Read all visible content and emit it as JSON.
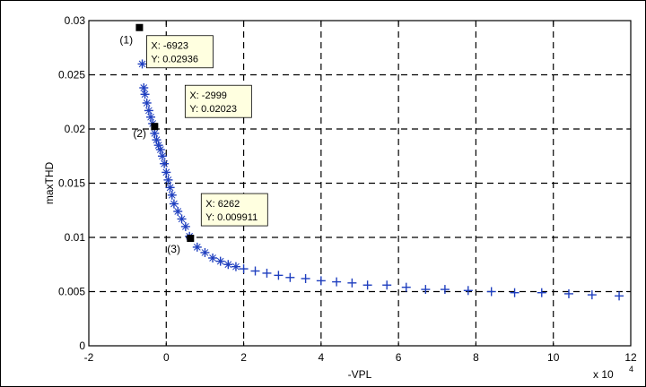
{
  "chart_data": {
    "type": "scatter",
    "title": "",
    "xlabel": "-VPL",
    "ylabel": "maxTHD",
    "x_multiplier_label": "x 10",
    "x_multiplier_exponent": "4",
    "xlim": [
      -2,
      12
    ],
    "ylim": [
      0,
      0.03
    ],
    "xticks": [
      "-2",
      "0",
      "2",
      "4",
      "6",
      "8",
      "10",
      "12"
    ],
    "yticks": [
      "0",
      "0.005",
      "0.01",
      "0.015",
      "0.02",
      "0.025",
      "0.03"
    ],
    "grid": true,
    "marker_color": "#1f3fbf",
    "series": [
      {
        "x": [
          -0.62,
          -0.58,
          -0.55,
          -0.5,
          -0.45,
          -0.4,
          -0.35,
          -0.3,
          -0.25,
          -0.2,
          -0.15,
          -0.1,
          -0.05,
          0,
          0.05,
          0.1,
          0.15,
          0.2,
          0.3,
          0.4,
          0.5,
          0.6,
          0.8,
          1.0,
          1.2,
          1.4,
          1.6,
          1.8,
          2.0,
          2.3,
          2.6,
          2.9,
          3.2,
          3.6,
          4.0,
          4.4,
          4.8,
          5.2,
          5.7,
          6.2,
          6.7,
          7.2,
          7.8,
          8.4,
          9.0,
          9.7,
          10.4,
          11.0,
          11.7
        ],
        "y": [
          0.026,
          0.0238,
          0.0232,
          0.0224,
          0.0217,
          0.0211,
          0.0205,
          0.0196,
          0.019,
          0.0185,
          0.0181,
          0.0175,
          0.0168,
          0.016,
          0.0153,
          0.0146,
          0.0139,
          0.0131,
          0.0124,
          0.0117,
          0.011,
          0.0101,
          0.0091,
          0.0086,
          0.0081,
          0.0078,
          0.0075,
          0.0073,
          0.0071,
          0.0069,
          0.0067,
          0.0065,
          0.0063,
          0.0062,
          0.006,
          0.0059,
          0.0058,
          0.0056,
          0.0056,
          0.0054,
          0.0052,
          0.0052,
          0.0051,
          0.005,
          0.0049,
          0.0049,
          0.0048,
          0.0047,
          0.0046
        ]
      }
    ],
    "annotations": [
      {
        "label": "(1)",
        "x": -0.6923,
        "y": 0.02936,
        "xtext": "X: -6923",
        "ytext": "Y: 0.02936"
      },
      {
        "label": "(2)",
        "x": -0.2999,
        "y": 0.02023,
        "xtext": "X: -2999",
        "ytext": "Y: 0.02023"
      },
      {
        "label": "(3)",
        "x": 0.6262,
        "y": 0.009911,
        "xtext": "X: 6262",
        "ytext": "Y: 0.009911"
      }
    ]
  }
}
